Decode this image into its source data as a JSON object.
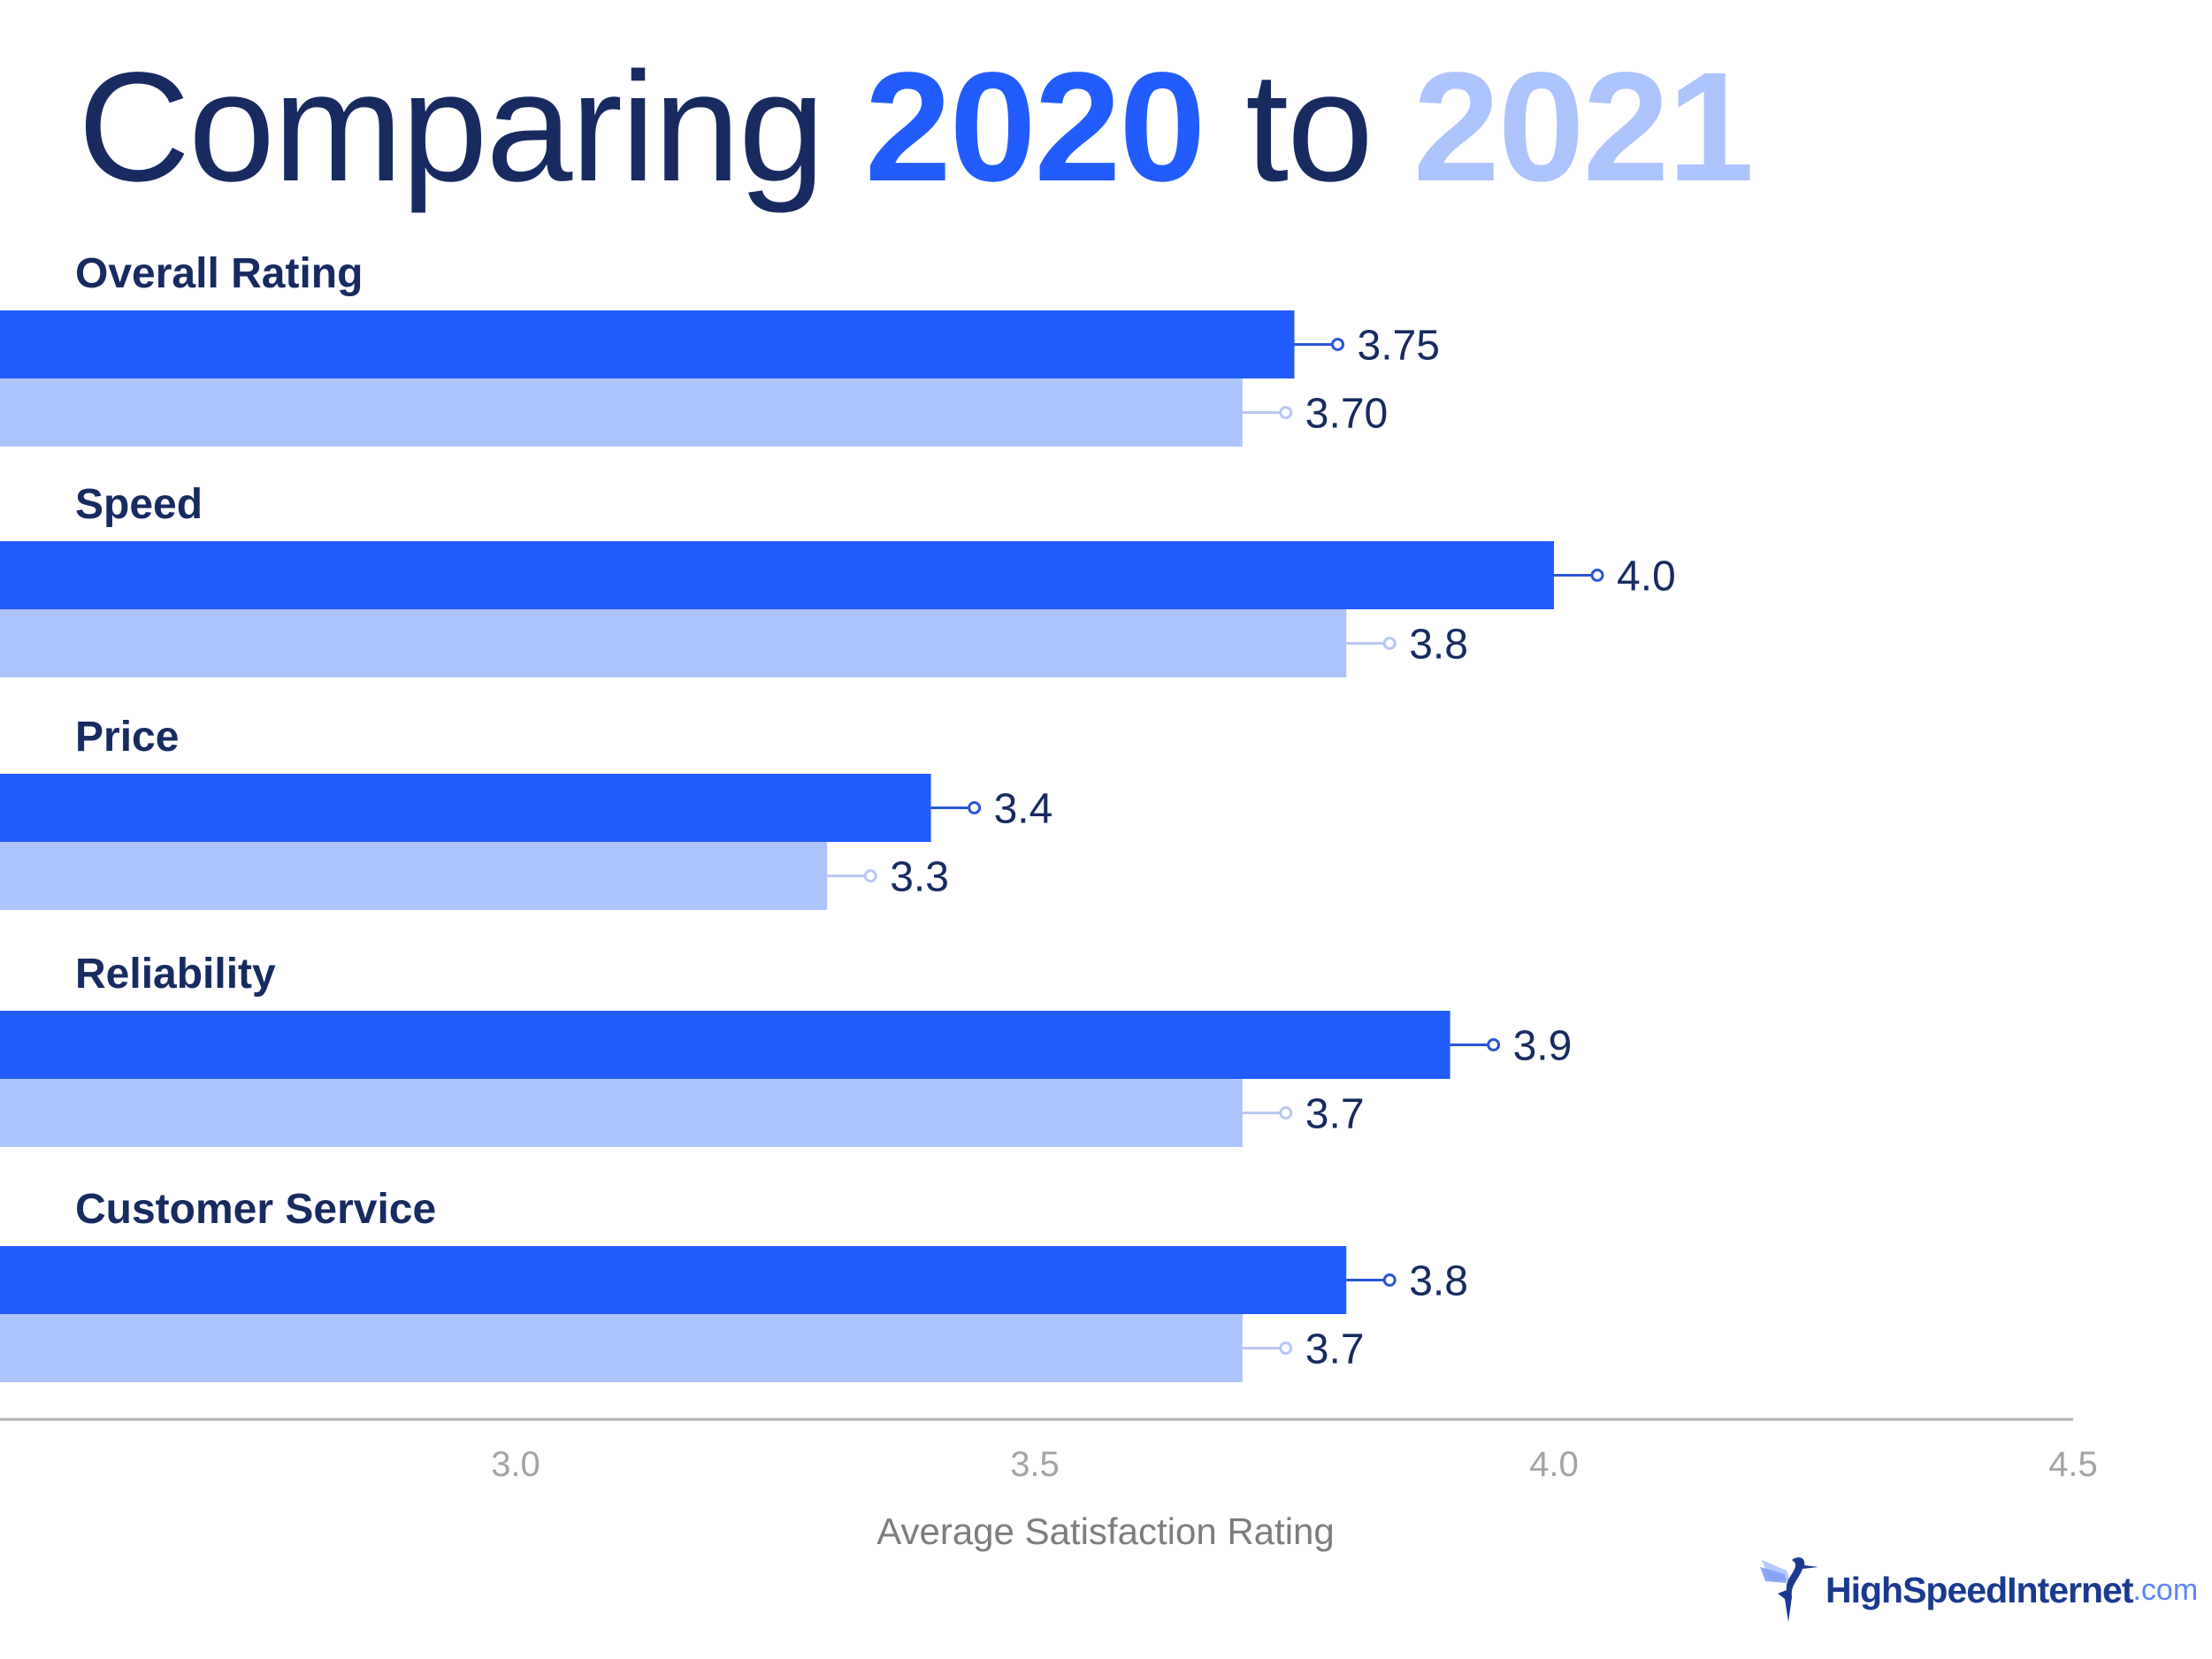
{
  "title": {
    "prefix": "Comparing ",
    "year_a": "2020",
    "middle": " to ",
    "year_b": "2021"
  },
  "colors": {
    "navy": "#172b61",
    "series_2020": "#235cfc",
    "series_2021": "#adc3fb",
    "axis": "#b3b3b3",
    "tick_text": "#a3a3a3",
    "axis_title": "#7d7d7d"
  },
  "logo": {
    "brand": "HighSpeedInternet",
    "tld": ".com"
  },
  "chart_data": {
    "type": "bar",
    "orientation": "horizontal",
    "title": "Comparing 2020 to 2021",
    "categories": [
      "Overall Rating",
      "Speed",
      "Price",
      "Reliability",
      "Customer Service"
    ],
    "series": [
      {
        "name": "2020",
        "values": [
          3.75,
          4.0,
          3.4,
          3.9,
          3.8
        ],
        "labels": [
          "3.75",
          "4.0",
          "3.4",
          "3.9",
          "3.8"
        ]
      },
      {
        "name": "2021",
        "values": [
          3.7,
          3.8,
          3.3,
          3.7,
          3.7
        ],
        "labels": [
          "3.70",
          "3.8",
          "3.3",
          "3.7",
          "3.7"
        ]
      }
    ],
    "xlabel": "Average Satisfaction Rating",
    "ylabel": "",
    "xlim": [
      2.5,
      4.5
    ],
    "xticks": [
      3.0,
      3.5,
      4.0,
      4.5
    ],
    "xtick_labels": [
      "3.0",
      "3.5",
      "4.0",
      "4.5"
    ],
    "grid": false,
    "legend": "in-title (color-coded years)"
  }
}
